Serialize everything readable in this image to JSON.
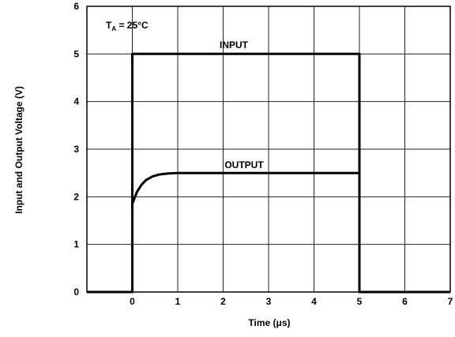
{
  "chart_data": {
    "type": "line",
    "xlabel": "Time (μs)",
    "ylabel": "Input and Output Voltage (V)",
    "xlim": [
      -1,
      7
    ],
    "ylim": [
      0,
      6
    ],
    "x_ticks": [
      "0",
      "1",
      "2",
      "3",
      "4",
      "5",
      "6",
      "7"
    ],
    "y_ticks": [
      "0",
      "1",
      "2",
      "3",
      "4",
      "5",
      "6"
    ],
    "grid": true,
    "annotation": {
      "prefix": "T",
      "subscript": "A",
      "suffix": " = 25°C"
    },
    "series": [
      {
        "name": "INPUT",
        "x": [
          -1,
          0,
          0,
          5,
          5,
          7
        ],
        "y": [
          0,
          0,
          5,
          5,
          0,
          0
        ]
      },
      {
        "name": "OUTPUT",
        "x": [
          -1,
          0,
          0,
          0.1,
          0.2,
          0.3,
          0.45,
          0.6,
          0.8,
          1.0,
          5,
          5,
          7
        ],
        "y": [
          0,
          0,
          1.85,
          2.1,
          2.25,
          2.35,
          2.43,
          2.47,
          2.49,
          2.5,
          2.5,
          0,
          0
        ]
      }
    ]
  }
}
